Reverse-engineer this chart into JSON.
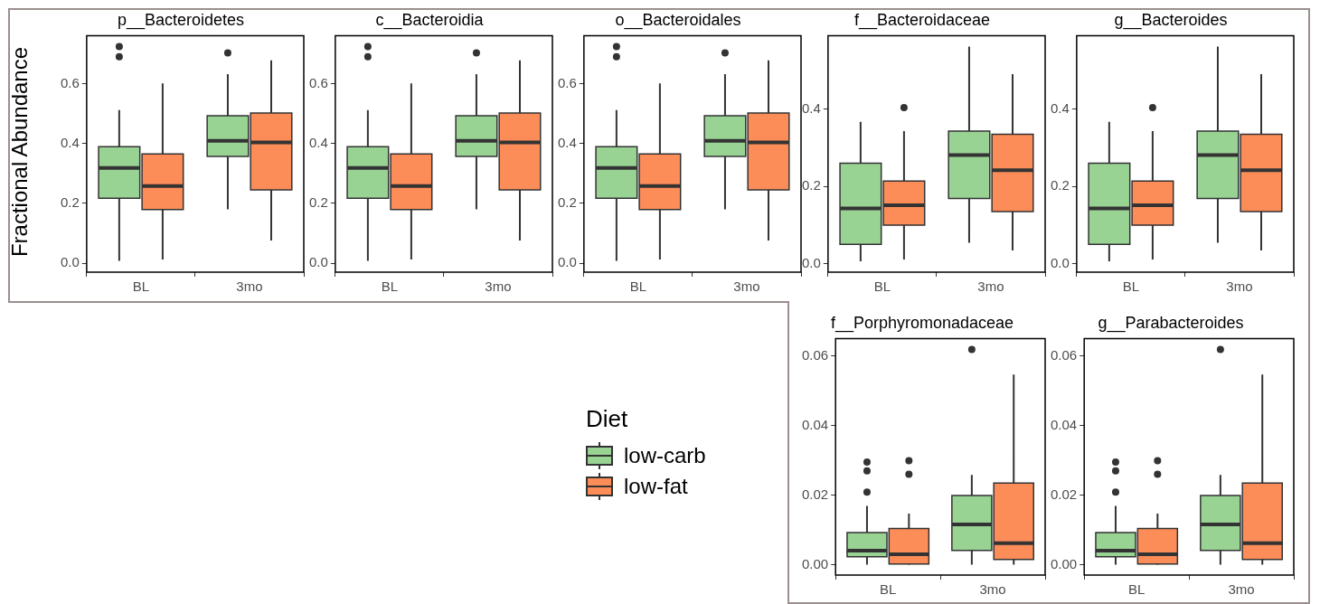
{
  "chart_data": [
    {
      "type": "box",
      "title": "p__Bacteroidetes",
      "ylabel": "Fractional Abundance",
      "legend_title": "Diet",
      "legend": "bottom",
      "categories": [
        "BL",
        "3mo"
      ],
      "ylim": [
        -0.03,
        0.76
      ],
      "yticks": [
        {
          "value": 0,
          "label": "0.0"
        },
        {
          "value": 0.2,
          "label": "0.2"
        },
        {
          "value": 0.4,
          "label": "0.4"
        },
        {
          "value": 0.6,
          "label": "0.6"
        }
      ],
      "series": [
        {
          "name": "low-carb",
          "color": "#99d394",
          "boxes": [
            {
              "low": 0.008,
              "q1": 0.217,
              "median": 0.318,
              "q3": 0.389,
              "high": 0.512,
              "outliers": [
                0.69,
                0.724
              ]
            },
            {
              "low": 0.18,
              "q1": 0.357,
              "median": 0.409,
              "q3": 0.493,
              "high": 0.632,
              "outliers": [
                0.703
              ]
            }
          ]
        },
        {
          "name": "low-fat",
          "color": "#fc8d59",
          "boxes": [
            {
              "low": 0.012,
              "q1": 0.179,
              "median": 0.258,
              "q3": 0.365,
              "high": 0.601
            },
            {
              "low": 0.076,
              "q1": 0.245,
              "median": 0.404,
              "q3": 0.502,
              "high": 0.678
            }
          ]
        }
      ]
    },
    {
      "type": "box",
      "title": "c__Bacteroidia",
      "categories": [
        "BL",
        "3mo"
      ],
      "ylim": [
        -0.03,
        0.76
      ],
      "yticks": [
        {
          "value": 0,
          "label": "0.0"
        },
        {
          "value": 0.2,
          "label": "0.2"
        },
        {
          "value": 0.4,
          "label": "0.4"
        },
        {
          "value": 0.6,
          "label": "0.6"
        }
      ],
      "series": [
        {
          "color": "#99d394",
          "boxes": [
            {
              "low": 0.008,
              "q1": 0.217,
              "median": 0.318,
              "q3": 0.389,
              "high": 0.512,
              "outliers": [
                0.69,
                0.724
              ]
            },
            {
              "low": 0.18,
              "q1": 0.357,
              "median": 0.409,
              "q3": 0.493,
              "high": 0.632,
              "outliers": [
                0.703
              ]
            }
          ]
        },
        {
          "color": "#fc8d59",
          "boxes": [
            {
              "low": 0.012,
              "q1": 0.179,
              "median": 0.258,
              "q3": 0.365,
              "high": 0.601
            },
            {
              "low": 0.076,
              "q1": 0.245,
              "median": 0.404,
              "q3": 0.502,
              "high": 0.678
            }
          ]
        }
      ]
    },
    {
      "type": "box",
      "title": "o__Bacteroidales",
      "categories": [
        "BL",
        "3mo"
      ],
      "ylim": [
        -0.03,
        0.76
      ],
      "yticks": [
        {
          "value": 0,
          "label": "0.0"
        },
        {
          "value": 0.2,
          "label": "0.2"
        },
        {
          "value": 0.4,
          "label": "0.4"
        },
        {
          "value": 0.6,
          "label": "0.6"
        }
      ],
      "series": [
        {
          "color": "#99d394",
          "boxes": [
            {
              "low": 0.008,
              "q1": 0.217,
              "median": 0.318,
              "q3": 0.389,
              "high": 0.512,
              "outliers": [
                0.69,
                0.724
              ]
            },
            {
              "low": 0.18,
              "q1": 0.357,
              "median": 0.409,
              "q3": 0.493,
              "high": 0.632,
              "outliers": [
                0.703
              ]
            }
          ]
        },
        {
          "color": "#fc8d59",
          "boxes": [
            {
              "low": 0.012,
              "q1": 0.179,
              "median": 0.258,
              "q3": 0.365,
              "high": 0.601
            },
            {
              "low": 0.076,
              "q1": 0.245,
              "median": 0.404,
              "q3": 0.502,
              "high": 0.678
            }
          ]
        }
      ]
    },
    {
      "type": "box",
      "title": "f__Bacteroidaceae",
      "categories": [
        "BL",
        "3mo"
      ],
      "ylim": [
        -0.022,
        0.59
      ],
      "yticks": [
        {
          "value": 0,
          "label": "0.0"
        },
        {
          "value": 0.2,
          "label": "0.2"
        },
        {
          "value": 0.4,
          "label": "0.4"
        }
      ],
      "series": [
        {
          "color": "#99d394",
          "boxes": [
            {
              "low": 0.006,
              "q1": 0.05,
              "median": 0.143,
              "q3": 0.26,
              "high": 0.367
            },
            {
              "low": 0.054,
              "q1": 0.169,
              "median": 0.281,
              "q3": 0.343,
              "high": 0.562
            }
          ]
        },
        {
          "color": "#fc8d59",
          "boxes": [
            {
              "low": 0.011,
              "q1": 0.1,
              "median": 0.151,
              "q3": 0.214,
              "high": 0.343,
              "outliers": [
                0.404
              ]
            },
            {
              "low": 0.034,
              "q1": 0.135,
              "median": 0.242,
              "q3": 0.335,
              "high": 0.491
            }
          ]
        }
      ]
    },
    {
      "type": "box",
      "title": "g__Bacteroides",
      "categories": [
        "BL",
        "3mo"
      ],
      "ylim": [
        -0.022,
        0.59
      ],
      "yticks": [
        {
          "value": 0,
          "label": "0.0"
        },
        {
          "value": 0.2,
          "label": "0.2"
        },
        {
          "value": 0.4,
          "label": "0.4"
        }
      ],
      "series": [
        {
          "color": "#99d394",
          "boxes": [
            {
              "low": 0.006,
              "q1": 0.05,
              "median": 0.143,
              "q3": 0.26,
              "high": 0.367
            },
            {
              "low": 0.054,
              "q1": 0.169,
              "median": 0.281,
              "q3": 0.343,
              "high": 0.562
            }
          ]
        },
        {
          "color": "#fc8d59",
          "boxes": [
            {
              "low": 0.011,
              "q1": 0.1,
              "median": 0.151,
              "q3": 0.214,
              "high": 0.343,
              "outliers": [
                0.404
              ]
            },
            {
              "low": 0.034,
              "q1": 0.135,
              "median": 0.242,
              "q3": 0.335,
              "high": 0.491
            }
          ]
        }
      ]
    },
    {
      "type": "box",
      "title": "f__Porphyromonadaceae",
      "categories": [
        "BL",
        "3mo"
      ],
      "ylim": [
        -0.003,
        0.065
      ],
      "yticks": [
        {
          "value": 0,
          "label": "0.00"
        },
        {
          "value": 0.02,
          "label": "0.02"
        },
        {
          "value": 0.04,
          "label": "0.04"
        },
        {
          "value": 0.06,
          "label": "0.06"
        }
      ],
      "series": [
        {
          "color": "#99d394",
          "boxes": [
            {
              "low": 0,
              "q1": 0.0023,
              "median": 0.004,
              "q3": 0.0092,
              "high": 0.0169,
              "outliers": [
                0.0209,
                0.027,
                0.0295
              ]
            },
            {
              "low": 0,
              "q1": 0.0041,
              "median": 0.0116,
              "q3": 0.0199,
              "high": 0.0258,
              "outliers": [
                0.0619
              ]
            }
          ]
        },
        {
          "color": "#fc8d59",
          "boxes": [
            {
              "low": 0,
              "q1": 0.0002,
              "median": 0.003,
              "q3": 0.0104,
              "high": 0.0147,
              "outliers": [
                0.026,
                0.0299
              ]
            },
            {
              "low": 0,
              "q1": 0.0015,
              "median": 0.0062,
              "q3": 0.0235,
              "high": 0.0547
            }
          ]
        }
      ]
    },
    {
      "type": "box",
      "title": "g__Parabacteroides",
      "categories": [
        "BL",
        "3mo"
      ],
      "ylim": [
        -0.003,
        0.065
      ],
      "yticks": [
        {
          "value": 0,
          "label": "0.00"
        },
        {
          "value": 0.02,
          "label": "0.02"
        },
        {
          "value": 0.04,
          "label": "0.04"
        },
        {
          "value": 0.06,
          "label": "0.06"
        }
      ],
      "series": [
        {
          "color": "#99d394",
          "boxes": [
            {
              "low": 0,
              "q1": 0.0023,
              "median": 0.004,
              "q3": 0.0092,
              "high": 0.0169,
              "outliers": [
                0.0209,
                0.027,
                0.0295
              ]
            },
            {
              "low": 0,
              "q1": 0.0041,
              "median": 0.0116,
              "q3": 0.0199,
              "high": 0.0258,
              "outliers": [
                0.0619
              ]
            }
          ]
        },
        {
          "color": "#fc8d59",
          "boxes": [
            {
              "low": 0,
              "q1": 0.0002,
              "median": 0.003,
              "q3": 0.0104,
              "high": 0.0147,
              "outliers": [
                0.026,
                0.0299
              ]
            },
            {
              "low": 0,
              "q1": 0.0015,
              "median": 0.0062,
              "q3": 0.0235,
              "high": 0.0547
            }
          ]
        }
      ]
    }
  ]
}
